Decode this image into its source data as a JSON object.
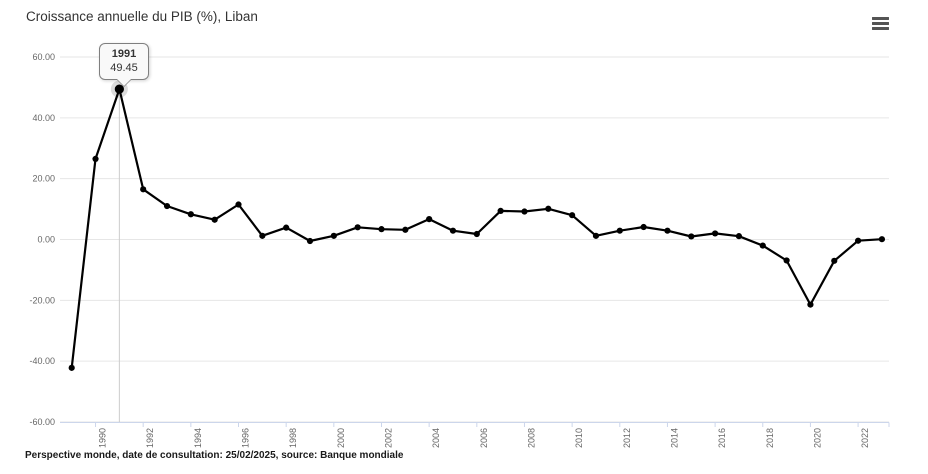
{
  "header": {
    "title": "Croissance annuelle du PIB (%), Liban"
  },
  "menu": {
    "icon": "hamburger-menu-icon"
  },
  "footer": {
    "source_text": "Perspective monde, date de consultation: 25/02/2025, source: Banque mondiale"
  },
  "colors": {
    "series": "#000000",
    "grid": "#e6e6e6",
    "axis_line": "#ccd6eb",
    "tick": "#ccd6eb",
    "axis_label": "#666666",
    "crosshair": "#cccccc",
    "halo": "#c9c9c9",
    "title_text": "#333333"
  },
  "chart_data": {
    "type": "line",
    "title": "Croissance annuelle du PIB (%), Liban",
    "x": [
      1989,
      1990,
      1991,
      1992,
      1993,
      1994,
      1995,
      1996,
      1997,
      1998,
      1999,
      2000,
      2001,
      2002,
      2003,
      2004,
      2005,
      2006,
      2007,
      2008,
      2009,
      2010,
      2011,
      2012,
      2013,
      2014,
      2015,
      2016,
      2017,
      2018,
      2019,
      2020,
      2021,
      2022,
      2023
    ],
    "values": [
      -42.2,
      26.5,
      49.45,
      16.5,
      11.0,
      8.3,
      6.5,
      11.5,
      1.2,
      3.9,
      -0.5,
      1.2,
      4.0,
      3.4,
      3.2,
      6.7,
      2.9,
      1.8,
      9.4,
      9.2,
      10.1,
      8.0,
      1.2,
      2.9,
      4.1,
      2.9,
      1.0,
      2.0,
      1.1,
      -2.0,
      -6.9,
      -21.4,
      -7.0,
      -0.4,
      0.1
    ],
    "ylim": [
      -60,
      60
    ],
    "y_tick_values": [
      60,
      40,
      20,
      0,
      -20,
      -40,
      -60
    ],
    "y_tick_labels": [
      "60.00",
      "40.00",
      "20.00",
      "0.00",
      "-20.00",
      "-40.00",
      "-60.00"
    ],
    "x_tick_years": [
      1990,
      1992,
      1994,
      1996,
      1998,
      2000,
      2002,
      2004,
      2006,
      2008,
      2010,
      2012,
      2014,
      2016,
      2018,
      2020,
      2022
    ],
    "grid": true,
    "legend": "none",
    "series_name": "Croissance annuelle du PIB (%)",
    "highlight": {
      "year": 1991,
      "value": 49.45,
      "label_year": "1991",
      "label_value": "49.45"
    }
  }
}
